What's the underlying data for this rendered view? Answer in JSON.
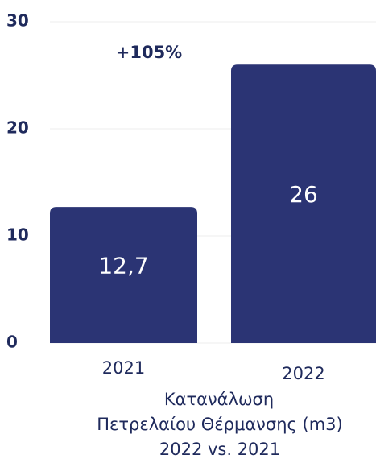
{
  "chart_data": {
    "type": "bar",
    "categories": [
      "2021",
      "2022"
    ],
    "values": [
      12.7,
      26
    ],
    "value_labels": [
      "12,7",
      "26"
    ],
    "color": "#2b3474",
    "ylim": [
      0,
      30
    ],
    "yticks": [
      0,
      10,
      20,
      30
    ],
    "grid": true,
    "annotation": "+105%",
    "xlabel": [
      "Κατανάλωση",
      "Πετρελαίου Θέρμανσης (m3)",
      "2022 vs. 2021"
    ]
  }
}
